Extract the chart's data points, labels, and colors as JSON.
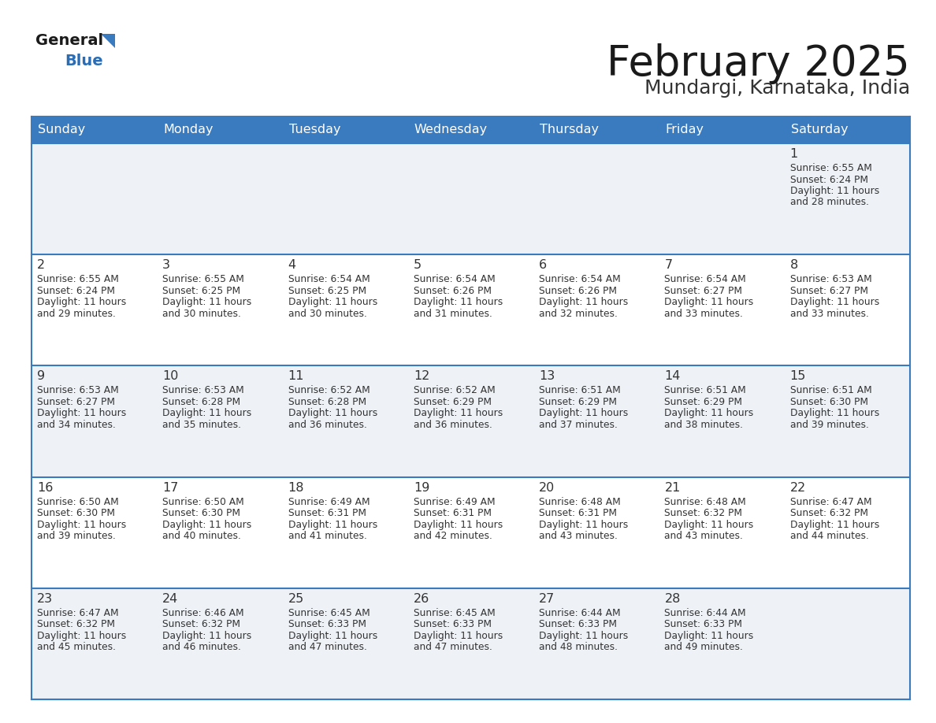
{
  "title": "February 2025",
  "subtitle": "Mundargi, Karnataka, India",
  "header_bg": "#3a7bbf",
  "header_text": "#ffffff",
  "day_names": [
    "Sunday",
    "Monday",
    "Tuesday",
    "Wednesday",
    "Thursday",
    "Friday",
    "Saturday"
  ],
  "cell_bg_light": "#eef2f7",
  "cell_bg_white": "#ffffff",
  "title_color": "#1a1a1a",
  "subtitle_color": "#333333",
  "info_color": "#333333",
  "day_num_color": "#333333",
  "logo_general_color": "#1a1a1a",
  "logo_blue_color": "#2a6db5",
  "logo_triangle_color": "#3a7bbf",
  "separator_color": "#3a7bbf",
  "days": [
    {
      "date": 1,
      "row": 0,
      "col": 6,
      "sunrise": "6:55 AM",
      "sunset": "6:24 PM",
      "daylight_h": "11 hours",
      "daylight_m": "28 minutes."
    },
    {
      "date": 2,
      "row": 1,
      "col": 0,
      "sunrise": "6:55 AM",
      "sunset": "6:24 PM",
      "daylight_h": "11 hours",
      "daylight_m": "29 minutes."
    },
    {
      "date": 3,
      "row": 1,
      "col": 1,
      "sunrise": "6:55 AM",
      "sunset": "6:25 PM",
      "daylight_h": "11 hours",
      "daylight_m": "30 minutes."
    },
    {
      "date": 4,
      "row": 1,
      "col": 2,
      "sunrise": "6:54 AM",
      "sunset": "6:25 PM",
      "daylight_h": "11 hours",
      "daylight_m": "30 minutes."
    },
    {
      "date": 5,
      "row": 1,
      "col": 3,
      "sunrise": "6:54 AM",
      "sunset": "6:26 PM",
      "daylight_h": "11 hours",
      "daylight_m": "31 minutes."
    },
    {
      "date": 6,
      "row": 1,
      "col": 4,
      "sunrise": "6:54 AM",
      "sunset": "6:26 PM",
      "daylight_h": "11 hours",
      "daylight_m": "32 minutes."
    },
    {
      "date": 7,
      "row": 1,
      "col": 5,
      "sunrise": "6:54 AM",
      "sunset": "6:27 PM",
      "daylight_h": "11 hours",
      "daylight_m": "33 minutes."
    },
    {
      "date": 8,
      "row": 1,
      "col": 6,
      "sunrise": "6:53 AM",
      "sunset": "6:27 PM",
      "daylight_h": "11 hours",
      "daylight_m": "33 minutes."
    },
    {
      "date": 9,
      "row": 2,
      "col": 0,
      "sunrise": "6:53 AM",
      "sunset": "6:27 PM",
      "daylight_h": "11 hours",
      "daylight_m": "34 minutes."
    },
    {
      "date": 10,
      "row": 2,
      "col": 1,
      "sunrise": "6:53 AM",
      "sunset": "6:28 PM",
      "daylight_h": "11 hours",
      "daylight_m": "35 minutes."
    },
    {
      "date": 11,
      "row": 2,
      "col": 2,
      "sunrise": "6:52 AM",
      "sunset": "6:28 PM",
      "daylight_h": "11 hours",
      "daylight_m": "36 minutes."
    },
    {
      "date": 12,
      "row": 2,
      "col": 3,
      "sunrise": "6:52 AM",
      "sunset": "6:29 PM",
      "daylight_h": "11 hours",
      "daylight_m": "36 minutes."
    },
    {
      "date": 13,
      "row": 2,
      "col": 4,
      "sunrise": "6:51 AM",
      "sunset": "6:29 PM",
      "daylight_h": "11 hours",
      "daylight_m": "37 minutes."
    },
    {
      "date": 14,
      "row": 2,
      "col": 5,
      "sunrise": "6:51 AM",
      "sunset": "6:29 PM",
      "daylight_h": "11 hours",
      "daylight_m": "38 minutes."
    },
    {
      "date": 15,
      "row": 2,
      "col": 6,
      "sunrise": "6:51 AM",
      "sunset": "6:30 PM",
      "daylight_h": "11 hours",
      "daylight_m": "39 minutes."
    },
    {
      "date": 16,
      "row": 3,
      "col": 0,
      "sunrise": "6:50 AM",
      "sunset": "6:30 PM",
      "daylight_h": "11 hours",
      "daylight_m": "39 minutes."
    },
    {
      "date": 17,
      "row": 3,
      "col": 1,
      "sunrise": "6:50 AM",
      "sunset": "6:30 PM",
      "daylight_h": "11 hours",
      "daylight_m": "40 minutes."
    },
    {
      "date": 18,
      "row": 3,
      "col": 2,
      "sunrise": "6:49 AM",
      "sunset": "6:31 PM",
      "daylight_h": "11 hours",
      "daylight_m": "41 minutes."
    },
    {
      "date": 19,
      "row": 3,
      "col": 3,
      "sunrise": "6:49 AM",
      "sunset": "6:31 PM",
      "daylight_h": "11 hours",
      "daylight_m": "42 minutes."
    },
    {
      "date": 20,
      "row": 3,
      "col": 4,
      "sunrise": "6:48 AM",
      "sunset": "6:31 PM",
      "daylight_h": "11 hours",
      "daylight_m": "43 minutes."
    },
    {
      "date": 21,
      "row": 3,
      "col": 5,
      "sunrise": "6:48 AM",
      "sunset": "6:32 PM",
      "daylight_h": "11 hours",
      "daylight_m": "43 minutes."
    },
    {
      "date": 22,
      "row": 3,
      "col": 6,
      "sunrise": "6:47 AM",
      "sunset": "6:32 PM",
      "daylight_h": "11 hours",
      "daylight_m": "44 minutes."
    },
    {
      "date": 23,
      "row": 4,
      "col": 0,
      "sunrise": "6:47 AM",
      "sunset": "6:32 PM",
      "daylight_h": "11 hours",
      "daylight_m": "45 minutes."
    },
    {
      "date": 24,
      "row": 4,
      "col": 1,
      "sunrise": "6:46 AM",
      "sunset": "6:32 PM",
      "daylight_h": "11 hours",
      "daylight_m": "46 minutes."
    },
    {
      "date": 25,
      "row": 4,
      "col": 2,
      "sunrise": "6:45 AM",
      "sunset": "6:33 PM",
      "daylight_h": "11 hours",
      "daylight_m": "47 minutes."
    },
    {
      "date": 26,
      "row": 4,
      "col": 3,
      "sunrise": "6:45 AM",
      "sunset": "6:33 PM",
      "daylight_h": "11 hours",
      "daylight_m": "47 minutes."
    },
    {
      "date": 27,
      "row": 4,
      "col": 4,
      "sunrise": "6:44 AM",
      "sunset": "6:33 PM",
      "daylight_h": "11 hours",
      "daylight_m": "48 minutes."
    },
    {
      "date": 28,
      "row": 4,
      "col": 5,
      "sunrise": "6:44 AM",
      "sunset": "6:33 PM",
      "daylight_h": "11 hours",
      "daylight_m": "49 minutes."
    }
  ]
}
